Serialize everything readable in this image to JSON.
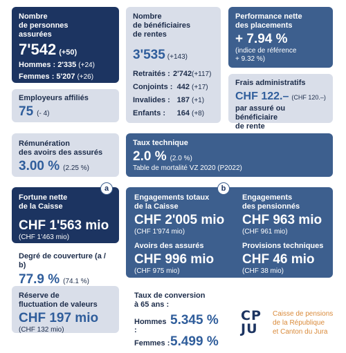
{
  "card1": {
    "title1": "Nombre",
    "title2": "de personnes",
    "title3": "assurées",
    "value": "7'542",
    "delta": "(+50)",
    "hommes_label": "Hommes :",
    "hommes_value": "2'335",
    "hommes_delta": "(+24)",
    "femmes_label": "Femmes :",
    "femmes_value": "5'207",
    "femmes_delta": "(+26)"
  },
  "card2": {
    "title1": "Nombre",
    "title2": "de bénéficiaires",
    "title3": "de rentes",
    "value": "3'535",
    "delta": "(+143)",
    "rows": [
      {
        "label": "Retraités :",
        "value": "2'742",
        "delta": "(+117)"
      },
      {
        "label": "Conjoints :",
        "value": "442",
        "delta": "(+17)"
      },
      {
        "label": "Invalides :",
        "value": "187",
        "delta": "(+1)"
      },
      {
        "label": "Enfants :",
        "value": "164",
        "delta": "(+8)"
      }
    ]
  },
  "card3": {
    "title1": "Performance nette",
    "title2": "des placements",
    "value": "+ 7.94 %",
    "sub1": "(indice de référence",
    "sub2": "+ 9.32 %)"
  },
  "card4": {
    "title": "Employeurs affiliés",
    "value": "75",
    "delta": "(- 4)"
  },
  "card5": {
    "title": "Frais administratifs",
    "value": "CHF 122.–",
    "prev": "(CHF 120.–)",
    "sub1": "par assuré ou bénéficiaire",
    "sub2": "de rente"
  },
  "card6": {
    "title1": "Rémunération",
    "title2": "des avoirs des assurés",
    "value": "3.00 %",
    "prev": "(2.25 %)"
  },
  "card7": {
    "title": "Taux technique",
    "value": "2.0 %",
    "prev": "(2.0 %)",
    "sub": "Table de mortalité VZ 2020 (P2022)"
  },
  "card8": {
    "badge": "a",
    "title1": "Fortune nette",
    "title2": "de la Caisse",
    "value": "CHF 1'563 mio",
    "prev": "(CHF 1'463 mio)"
  },
  "card9": {
    "badge": "b",
    "a_title1": "Engagements totaux",
    "a_title2": "de la Caisse",
    "a_value": "CHF 2'005 mio",
    "a_prev": "(CHF 1'974 mio)",
    "b_title1": "Engagements",
    "b_title2": "des pensionnés",
    "b_value": "CHF 963 mio",
    "b_prev": "(CHF 961 mio)",
    "c_title": "Avoirs des assurés",
    "c_value": "CHF 996 mio",
    "c_prev": "(CHF 975 mio)",
    "d_title": "Provisions techniques",
    "d_value": "CHF 46 mio",
    "d_prev": "(CHF 38 mio)"
  },
  "card10": {
    "title": "Degré de couverture (a / b)",
    "value": "77.9 %",
    "prev": "(74.1 %)"
  },
  "card11": {
    "title1": "Réserve de",
    "title2": "fluctuation de valeurs",
    "value": "CHF 197 mio",
    "prev": "(CHF 132 mio)"
  },
  "card12": {
    "title1": "Taux de conversion",
    "title2": "à 65 ans :",
    "hommes_label": "Hommes :",
    "hommes_value": "5.345 %",
    "femmes_label": "Femmes :",
    "femmes_value": "5.499 %"
  },
  "logo": {
    "letters_top": "CP",
    "letters_bottom": "JU",
    "line1": "Caisse de pensions",
    "line2": "de la République",
    "line3": "et Canton du Jura"
  },
  "colors": {
    "navy": "#1c3461",
    "blue": "#3d5f8e",
    "light": "#d9dee9",
    "orange": "#d98a3a"
  }
}
